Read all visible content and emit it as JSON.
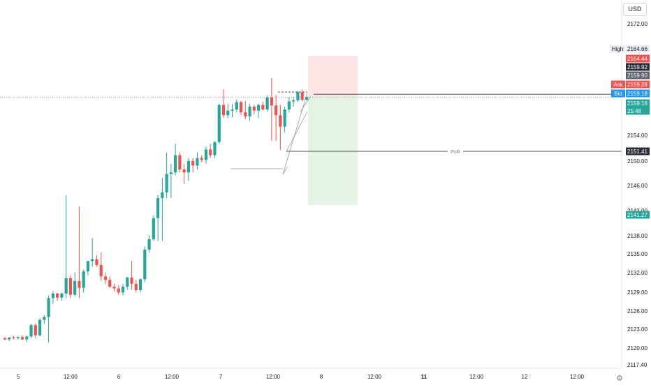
{
  "currency": "USD",
  "settings_icon": "gear-icon",
  "colors": {
    "up": "#26a69a",
    "down": "#ef5350",
    "grid": "#ffffff",
    "text": "#131722"
  },
  "chart_data": {
    "type": "candlestick",
    "y_axis": {
      "ylim": [
        2116.0,
        2174.6
      ],
      "ticks": [
        "2172.00",
        "2164.66",
        "2159.16",
        "2154.00",
        "2150.00",
        "2146.00",
        "2143.00",
        "2138.00",
        "2135.00",
        "2132.00",
        "2129.00",
        "2126.00",
        "2123.00",
        "2120.00",
        "2117.40"
      ]
    },
    "x_axis": {
      "ticks": [
        "5",
        "12:00",
        "6",
        "12:00",
        "7",
        "12:00",
        "8",
        "12:00",
        "11",
        "12:00",
        "12",
        "12:00"
      ],
      "bold_ticks": [
        "11"
      ]
    },
    "candles": [
      [
        2117.0,
        2117.2,
        2116.6,
        2116.8
      ],
      [
        2116.8,
        2117.2,
        2116.5,
        2117.1
      ],
      [
        2117.1,
        2117.4,
        2116.8,
        2117.0
      ],
      [
        2117.0,
        2117.3,
        2116.7,
        2117.2
      ],
      [
        2117.2,
        2117.5,
        2116.6,
        2116.8
      ],
      [
        2116.8,
        2117.5,
        2116.3,
        2117.3
      ],
      [
        2117.3,
        2119.5,
        2117.0,
        2119.3
      ],
      [
        2119.3,
        2119.6,
        2117.0,
        2117.5
      ],
      [
        2117.5,
        2120.5,
        2117.3,
        2120.2
      ],
      [
        2120.2,
        2121.0,
        2119.5,
        2120.7
      ],
      [
        2120.7,
        2124.5,
        2116.3,
        2124.0
      ],
      [
        2124.0,
        2125.2,
        2123.0,
        2124.8
      ],
      [
        2124.8,
        2125.0,
        2123.5,
        2124.1
      ],
      [
        2124.1,
        2125.0,
        2123.6,
        2124.8
      ],
      [
        2124.8,
        2142.0,
        2124.0,
        2127.5
      ],
      [
        2127.5,
        2128.0,
        2124.0,
        2124.6
      ],
      [
        2124.6,
        2128.5,
        2124.3,
        2127.0
      ],
      [
        2127.0,
        2140.0,
        2124.0,
        2125.8
      ],
      [
        2125.8,
        2129.0,
        2125.0,
        2128.7
      ],
      [
        2128.7,
        2130.5,
        2128.0,
        2130.5
      ],
      [
        2130.5,
        2134.5,
        2129.5,
        2130.8
      ],
      [
        2130.8,
        2131.5,
        2129.5,
        2129.8
      ],
      [
        2129.8,
        2132.0,
        2127.0,
        2127.8
      ],
      [
        2127.8,
        2128.5,
        2126.5,
        2127.2
      ],
      [
        2127.2,
        2127.8,
        2125.8,
        2126.0
      ],
      [
        2126.0,
        2126.5,
        2125.2,
        2125.7
      ],
      [
        2125.7,
        2126.3,
        2124.6,
        2125.0
      ],
      [
        2125.0,
        2126.5,
        2124.5,
        2126.0
      ],
      [
        2126.0,
        2127.8,
        2125.5,
        2127.6
      ],
      [
        2127.6,
        2130.5,
        2125.5,
        2126.5
      ],
      [
        2126.5,
        2127.2,
        2125.0,
        2125.4
      ],
      [
        2125.4,
        2127.5,
        2125.0,
        2127.3
      ],
      [
        2127.3,
        2133.0,
        2126.8,
        2132.5
      ],
      [
        2132.5,
        2135.0,
        2132.0,
        2134.3
      ],
      [
        2134.3,
        2138.5,
        2134.0,
        2138.0
      ],
      [
        2138.0,
        2142.0,
        2134.0,
        2141.5
      ],
      [
        2141.5,
        2145.0,
        2134.0,
        2142.5
      ],
      [
        2142.5,
        2149.5,
        2141.5,
        2145.7
      ],
      [
        2145.7,
        2147.5,
        2141.5,
        2146.0
      ],
      [
        2146.0,
        2151.0,
        2145.5,
        2149.0
      ],
      [
        2149.0,
        2149.5,
        2146.0,
        2146.5
      ],
      [
        2146.5,
        2147.5,
        2144.0,
        2146.0
      ],
      [
        2146.0,
        2148.5,
        2144.5,
        2148.0
      ],
      [
        2148.0,
        2148.5,
        2146.0,
        2147.2
      ],
      [
        2147.2,
        2149.5,
        2146.5,
        2148.5
      ],
      [
        2148.5,
        2149.0,
        2147.8,
        2148.2
      ],
      [
        2148.2,
        2150.5,
        2147.5,
        2150.0
      ],
      [
        2150.0,
        2151.0,
        2148.5,
        2149.0
      ],
      [
        2149.0,
        2151.5,
        2148.5,
        2151.3
      ],
      [
        2151.3,
        2158.0,
        2151.0,
        2157.8
      ],
      [
        2157.8,
        2160.5,
        2155.5,
        2156.0
      ],
      [
        2156.0,
        2158.0,
        2155.5,
        2156.8
      ],
      [
        2156.8,
        2158.0,
        2155.6,
        2157.0
      ],
      [
        2157.0,
        2158.8,
        2156.5,
        2158.3
      ],
      [
        2158.3,
        2158.5,
        2156.0,
        2156.5
      ],
      [
        2156.5,
        2158.5,
        2155.3,
        2155.8
      ],
      [
        2155.8,
        2158.0,
        2155.0,
        2157.5
      ],
      [
        2157.5,
        2157.8,
        2156.2,
        2156.8
      ],
      [
        2156.8,
        2158.0,
        2155.5,
        2157.8
      ],
      [
        2157.8,
        2158.4,
        2156.8,
        2157.0
      ],
      [
        2157.0,
        2159.5,
        2156.6,
        2159.1
      ],
      [
        2159.1,
        2162.5,
        2151.5,
        2157.7
      ],
      [
        2157.7,
        2159.5,
        2151.5,
        2156.0
      ],
      [
        2156.0,
        2157.8,
        2150.0,
        2154.0
      ],
      [
        2154.0,
        2157.5,
        2153.0,
        2157.0
      ],
      [
        2157.0,
        2159.2,
        2156.5,
        2158.4
      ],
      [
        2158.4,
        2159.2,
        2157.5,
        2158.6
      ],
      [
        2158.6,
        2160.2,
        2158.3,
        2160.0
      ],
      [
        2160.0,
        2160.5,
        2158.4,
        2158.7
      ],
      [
        2158.7,
        2159.3,
        2158.6,
        2159.16
      ]
    ],
    "annotations": {
      "pattern_lines": "wedge / triangle drawing",
      "position_tool": {
        "entry": 2159.18,
        "target": 2141.27,
        "stop": 2164.66
      },
      "por_label": "PoR",
      "por_price": "2151.41"
    },
    "price_labels": [
      {
        "label": "High",
        "value": "2164.66",
        "style": "high"
      },
      {
        "label": "",
        "value": "2164.44",
        "style": "red"
      },
      {
        "label": "",
        "value": "2159.92",
        "style": "dark"
      },
      {
        "label": "",
        "value": "2159.90",
        "style": "gray"
      },
      {
        "label": "Ask",
        "value": "2159.28",
        "style": "red"
      },
      {
        "label": "Bid",
        "value": "2159.18",
        "style": "blue"
      },
      {
        "label": "",
        "value": "2159.16",
        "sub": "25:48",
        "style": "green"
      },
      {
        "label": "",
        "value": "2151.41",
        "style": "dark"
      },
      {
        "label": "",
        "value": "2141.27",
        "style": "green"
      }
    ]
  }
}
